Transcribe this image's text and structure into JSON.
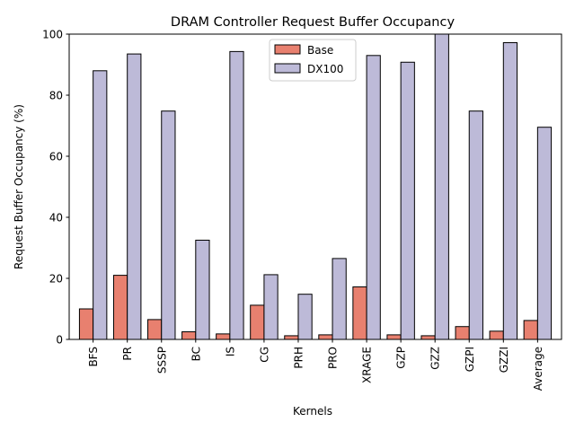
{
  "chart_data": {
    "type": "bar",
    "title": "DRAM Controller Request Buffer Occupancy",
    "xlabel": "Kernels",
    "ylabel": "Request Buffer Occupancy (%)",
    "ylim": [
      0,
      100
    ],
    "yticks": [
      "0",
      "20",
      "40",
      "60",
      "80",
      "100"
    ],
    "grid": false,
    "legend_position": "top-center",
    "categories": [
      "BFS",
      "PR",
      "SSSP",
      "BC",
      "IS",
      "CG",
      "PRH",
      "PRO",
      "XRAGE",
      "GZP",
      "GZZ",
      "GZPI",
      "GZZI",
      "Average"
    ],
    "series": [
      {
        "name": "Base",
        "color": "#e8806f",
        "values": [
          10.0,
          21.0,
          6.5,
          2.5,
          1.8,
          11.2,
          1.2,
          1.5,
          17.2,
          1.5,
          1.2,
          4.2,
          2.7,
          6.2
        ]
      },
      {
        "name": "DX100",
        "color": "#bdbad8",
        "values": [
          88.0,
          93.5,
          74.8,
          32.5,
          94.3,
          21.2,
          14.8,
          26.5,
          93.0,
          90.8,
          100.0,
          74.8,
          97.2,
          69.5
        ]
      }
    ]
  }
}
